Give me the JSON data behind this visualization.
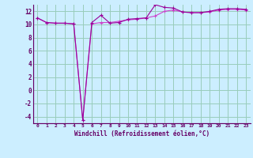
{
  "x": [
    0,
    1,
    2,
    3,
    4,
    5,
    6,
    7,
    8,
    9,
    10,
    11,
    12,
    13,
    14,
    15,
    16,
    17,
    18,
    19,
    20,
    21,
    22,
    23
  ],
  "line1": [
    11.0,
    10.3,
    10.2,
    10.2,
    10.1,
    -4.5,
    10.3,
    11.4,
    10.2,
    10.3,
    10.8,
    10.9,
    11.0,
    13.0,
    12.6,
    12.5,
    11.9,
    11.8,
    11.8,
    12.0,
    12.3,
    12.4,
    12.4,
    12.3
  ],
  "line2": [
    11.0,
    10.3,
    10.2,
    10.2,
    10.1,
    -4.5,
    10.1,
    10.3,
    10.3,
    10.5,
    10.7,
    10.8,
    11.0,
    11.3,
    12.0,
    12.2,
    11.9,
    11.8,
    11.8,
    11.9,
    12.2,
    12.3,
    12.3,
    12.2
  ],
  "line_color1": "#990099",
  "line_color2": "#cc44cc",
  "bg_color": "#cceeff",
  "grid_color": "#99ccbb",
  "tick_color": "#660066",
  "xlabel": "Windchill (Refroidissement éolien,°C)",
  "ylim": [
    -5,
    13
  ],
  "xlim": [
    -0.5,
    23.5
  ],
  "yticks": [
    -4,
    -2,
    0,
    2,
    4,
    6,
    8,
    10,
    12
  ],
  "xticks": [
    0,
    1,
    2,
    3,
    4,
    5,
    6,
    7,
    8,
    9,
    10,
    11,
    12,
    13,
    14,
    15,
    16,
    17,
    18,
    19,
    20,
    21,
    22,
    23
  ]
}
